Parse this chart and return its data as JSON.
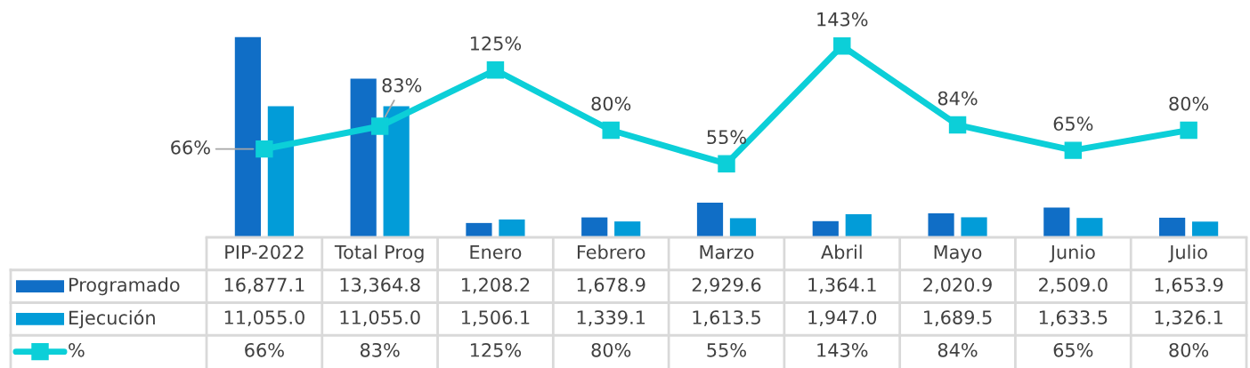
{
  "chart_data": {
    "type": "bar",
    "categories": [
      "PIP-2022",
      "Total Prog",
      "Enero",
      "Febrero",
      "Marzo",
      "Abril",
      "Mayo",
      "Junio",
      "Julio"
    ],
    "series": [
      {
        "name": "Programado",
        "color": "#106ec6",
        "values": [
          16877.1,
          13364.8,
          1208.2,
          1678.9,
          2929.6,
          1364.1,
          2020.9,
          2509.0,
          1653.9
        ],
        "value_labels": [
          "16,877.1",
          "13,364.8",
          "1,208.2",
          "1,678.9",
          "2,929.6",
          "1,364.1",
          "2,020.9",
          "2,509.0",
          "1,653.9"
        ]
      },
      {
        "name": "Ejecución",
        "color": "#029cd8",
        "values": [
          11055.0,
          11055.0,
          1506.1,
          1339.1,
          1613.5,
          1947.0,
          1689.5,
          1633.5,
          1326.1
        ],
        "value_labels": [
          "11,055.0",
          "11,055.0",
          "1,506.1",
          "1,339.1",
          "1,613.5",
          "1,947.0",
          "1,689.5",
          "1,633.5",
          "1,326.1"
        ]
      },
      {
        "name": "%",
        "type": "line",
        "axis": "y2",
        "color": "#0ccfd8",
        "values": [
          66,
          83,
          125,
          80,
          55,
          143,
          84,
          65,
          80
        ],
        "value_labels": [
          "66%",
          "83%",
          "125%",
          "80%",
          "55%",
          "143%",
          "84%",
          "65%",
          "80%"
        ]
      }
    ],
    "tick_labels": "x",
    "legend": "bottom left",
    "marker": "square",
    "line_style": "solid"
  }
}
